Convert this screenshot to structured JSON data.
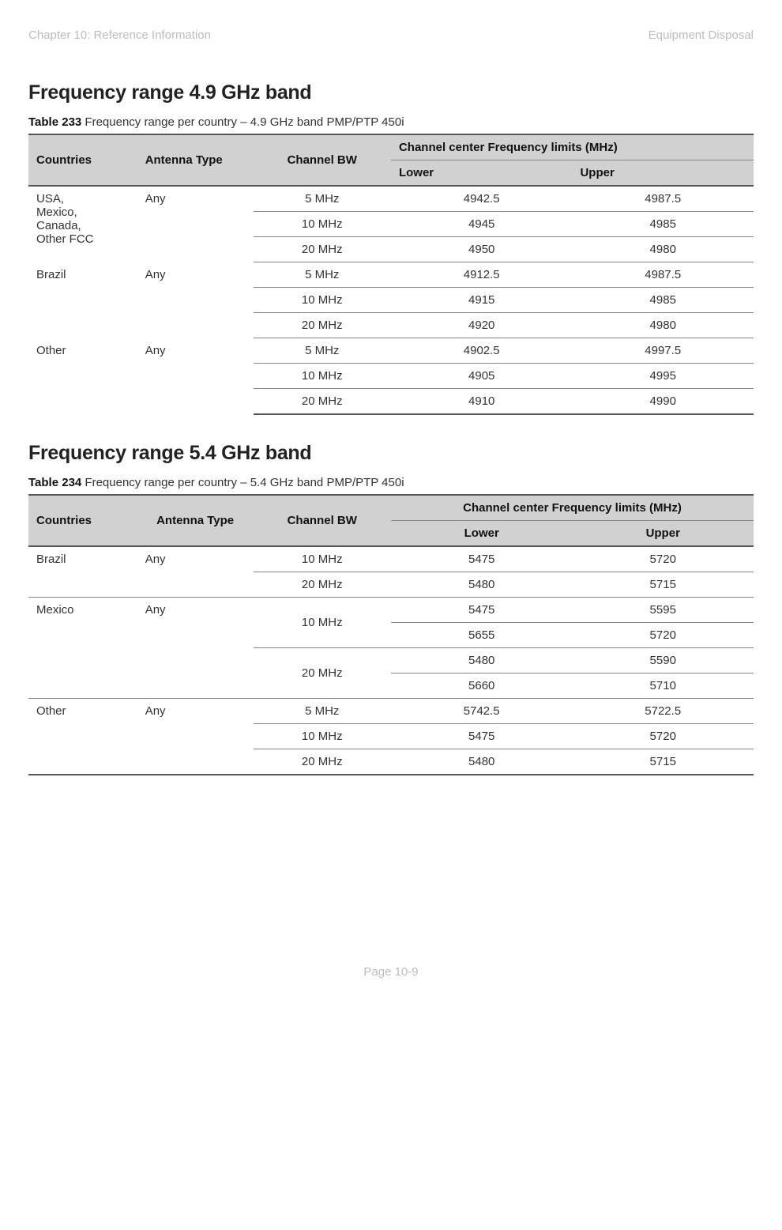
{
  "header": {
    "left": "Chapter 10:  Reference Information",
    "right": "Equipment Disposal"
  },
  "section49": {
    "title": "Frequency range 4.9 GHz band",
    "caption_label": "Table 233",
    "caption_text": " Frequency range per country – 4.9 GHz band PMP/PTP 450i",
    "columns": {
      "countries": "Countries",
      "antenna": "Antenna Type",
      "bw": "Channel BW",
      "limits": "Channel center Frequency limits (MHz)",
      "lower": "Lower",
      "upper": "Upper"
    },
    "groups": [
      {
        "country": "USA, Mexico, Canada, Other FCC",
        "antenna": "Any",
        "rows": [
          {
            "bw": "5 MHz",
            "lower": "4942.5",
            "upper": "4987.5"
          },
          {
            "bw": "10 MHz",
            "lower": "4945",
            "upper": "4985"
          },
          {
            "bw": "20 MHz",
            "lower": "4950",
            "upper": "4980"
          }
        ]
      },
      {
        "country": "Brazil",
        "antenna": "Any",
        "rows": [
          {
            "bw": "5 MHz",
            "lower": "4912.5",
            "upper": "4987.5"
          },
          {
            "bw": "10 MHz",
            "lower": "4915",
            "upper": "4985"
          },
          {
            "bw": "20 MHz",
            "lower": "4920",
            "upper": "4980"
          }
        ]
      },
      {
        "country": "Other",
        "antenna": "Any",
        "rows": [
          {
            "bw": "5 MHz",
            "lower": "4902.5",
            "upper": "4997.5"
          },
          {
            "bw": "10 MHz",
            "lower": "4905",
            "upper": "4995"
          },
          {
            "bw": "20 MHz",
            "lower": "4910",
            "upper": "4990"
          }
        ]
      }
    ]
  },
  "section54": {
    "title": "Frequency range 5.4 GHz band",
    "caption_label": "Table 234",
    "caption_text": " Frequency range per country – 5.4 GHz band PMP/PTP 450i",
    "columns": {
      "countries": "Countries",
      "antenna": "Antenna Type",
      "bw": "Channel BW",
      "limits": "Channel center Frequency limits (MHz)",
      "lower": "Lower",
      "upper": "Upper"
    },
    "groups": [
      {
        "country": "Brazil",
        "antenna": "Any",
        "bwgroups": [
          {
            "bw": "10 MHz",
            "rows": [
              {
                "lower": "5475",
                "upper": "5720"
              }
            ]
          },
          {
            "bw": "20 MHz",
            "rows": [
              {
                "lower": "5480",
                "upper": "5715"
              }
            ]
          }
        ]
      },
      {
        "country": "Mexico",
        "antenna": "Any",
        "bwgroups": [
          {
            "bw": "10 MHz",
            "rows": [
              {
                "lower": "5475",
                "upper": "5595"
              },
              {
                "lower": "5655",
                "upper": "5720"
              }
            ]
          },
          {
            "bw": "20 MHz",
            "rows": [
              {
                "lower": "5480",
                "upper": "5590"
              },
              {
                "lower": "5660",
                "upper": "5710"
              }
            ]
          }
        ]
      },
      {
        "country": "Other",
        "antenna": "Any",
        "bwgroups": [
          {
            "bw": "5 MHz",
            "rows": [
              {
                "lower": "5742.5",
                "upper": "5722.5"
              }
            ]
          },
          {
            "bw": "10 MHz",
            "rows": [
              {
                "lower": "5475",
                "upper": "5720"
              }
            ]
          },
          {
            "bw": "20 MHz",
            "rows": [
              {
                "lower": "5480",
                "upper": "5715"
              }
            ]
          }
        ]
      }
    ]
  },
  "footer": {
    "page": "Page 10-9"
  },
  "style": {
    "col_widths_pct": [
      15,
      16,
      19,
      25,
      25
    ],
    "header_bg": "#d1d1d1",
    "border_thick": "#555555",
    "border_thin": "#888888",
    "muted_text": "#bdbdbd"
  }
}
